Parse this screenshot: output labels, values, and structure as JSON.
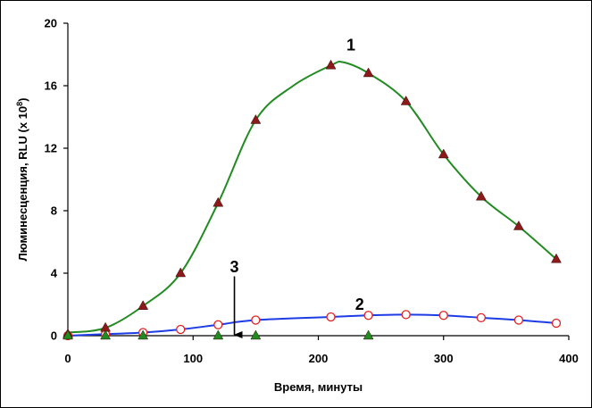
{
  "chart_data": {
    "type": "line",
    "title": "",
    "xlabel": "Время, минуты",
    "ylabel": "Люминесценция, RLU (x 10",
    "ylabel_sup": "8",
    "ylabel_close": ")",
    "xlim": [
      0,
      400
    ],
    "ylim": [
      0,
      20
    ],
    "xticks": [
      0,
      100,
      200,
      300,
      400
    ],
    "yticks": [
      0,
      4,
      8,
      12,
      16,
      20
    ],
    "grid": false,
    "series": [
      {
        "name": "1",
        "color": "#228B22",
        "marker": "triangle",
        "marker_color": "#8B1A1A",
        "x": [
          0,
          30,
          60,
          90,
          120,
          150,
          210,
          240,
          270,
          300,
          330,
          360,
          390
        ],
        "y": [
          0.1,
          0.5,
          1.9,
          4.0,
          8.5,
          13.8,
          17.3,
          16.8,
          15.0,
          11.6,
          8.9,
          7.0,
          4.9
        ],
        "curve": {
          "x": [
            0,
            30,
            60,
            90,
            120,
            150,
            180,
            210,
            220,
            240,
            270,
            300,
            330,
            360,
            390
          ],
          "y": [
            0.2,
            0.5,
            1.9,
            4.0,
            8.5,
            13.8,
            16.0,
            17.3,
            17.5,
            16.8,
            15.0,
            11.6,
            8.9,
            7.0,
            4.9
          ]
        }
      },
      {
        "name": "2",
        "color": "#1E3CE6",
        "marker": "circle-open",
        "marker_color": "#E02020",
        "x": [
          0,
          30,
          60,
          90,
          120,
          150,
          210,
          240,
          270,
          300,
          330,
          360,
          390
        ],
        "y": [
          0.0,
          0.1,
          0.2,
          0.4,
          0.7,
          1.0,
          1.2,
          1.3,
          1.35,
          1.3,
          1.15,
          1.0,
          0.8
        ]
      },
      {
        "name": "3",
        "color": "#1E8C1E",
        "marker": "triangle",
        "marker_color": "#1E8C1E",
        "x": [
          0,
          30,
          60,
          120,
          150,
          240
        ],
        "y": [
          0,
          0,
          0,
          0,
          0,
          0
        ]
      }
    ],
    "annotations": [
      {
        "text": "1",
        "x": 226,
        "y": 18.6
      },
      {
        "text": "2",
        "x": 233,
        "y": 2.0
      },
      {
        "text": "3",
        "x": 133,
        "y": 4.4,
        "arrow_from": [
          133,
          3.8
        ],
        "arrow_to": [
          133,
          0.0
        ]
      }
    ]
  }
}
